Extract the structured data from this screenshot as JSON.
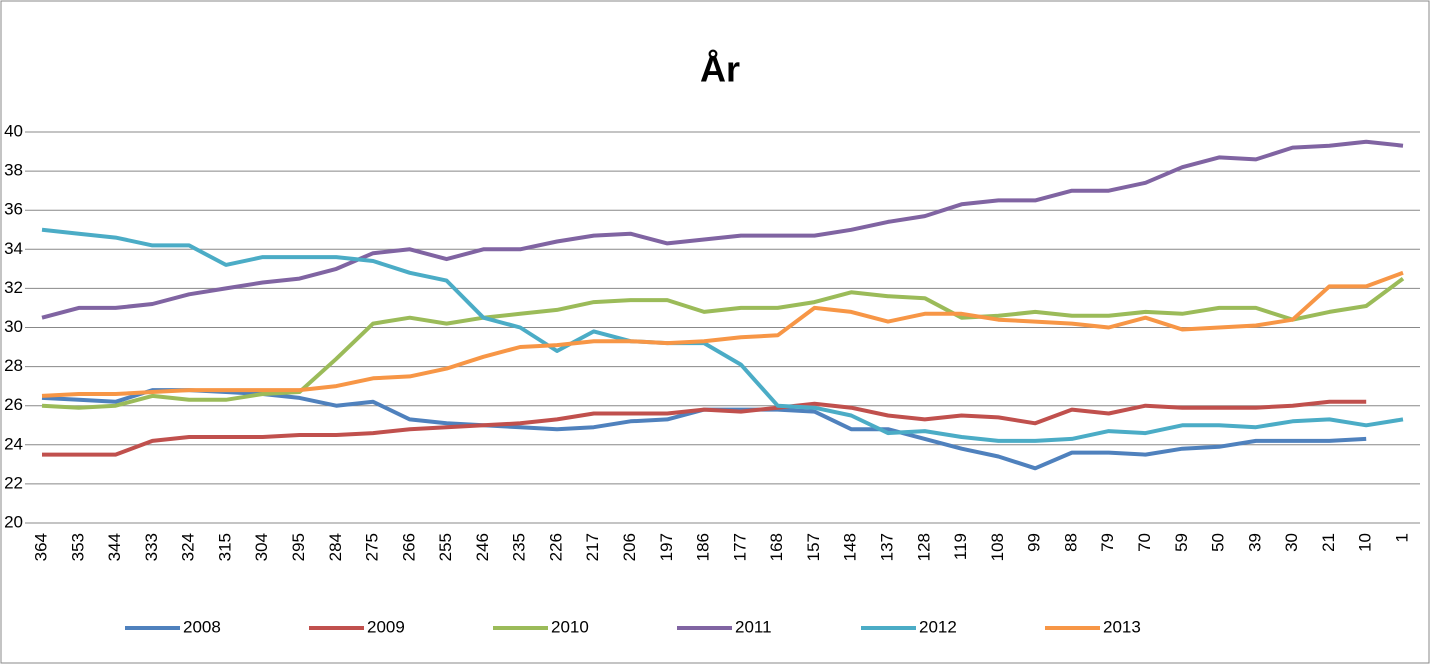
{
  "chart_data": {
    "type": "line",
    "title": "År",
    "categories": [
      "364",
      "353",
      "344",
      "333",
      "324",
      "315",
      "304",
      "295",
      "284",
      "275",
      "266",
      "255",
      "246",
      "235",
      "226",
      "217",
      "206",
      "197",
      "186",
      "177",
      "168",
      "157",
      "148",
      "137",
      "128",
      "119",
      "108",
      "99",
      "88",
      "79",
      "70",
      "59",
      "50",
      "39",
      "30",
      "21",
      "10",
      "1"
    ],
    "series": [
      {
        "name": "2008",
        "color": "#4f81bd",
        "values": [
          26.4,
          26.3,
          26.2,
          26.8,
          26.8,
          26.7,
          26.6,
          26.4,
          26.0,
          26.2,
          25.3,
          25.1,
          25.0,
          24.9,
          24.8,
          24.9,
          25.2,
          25.3,
          25.8,
          25.8,
          25.8,
          25.7,
          24.8,
          24.8,
          24.3,
          23.8,
          23.4,
          22.8,
          23.6,
          23.6,
          23.5,
          23.8,
          23.9,
          24.2,
          24.2,
          24.2,
          24.3,
          null
        ]
      },
      {
        "name": "2009",
        "color": "#c0504d",
        "values": [
          23.5,
          23.5,
          23.5,
          24.2,
          24.4,
          24.4,
          24.4,
          24.5,
          24.5,
          24.6,
          24.8,
          24.9,
          25.0,
          25.1,
          25.3,
          25.6,
          25.6,
          25.6,
          25.8,
          25.7,
          25.9,
          26.1,
          25.9,
          25.5,
          25.3,
          25.5,
          25.4,
          25.1,
          25.8,
          25.6,
          26.0,
          25.9,
          25.9,
          25.9,
          26.0,
          26.2,
          26.2,
          null
        ]
      },
      {
        "name": "2010",
        "color": "#9bbb59",
        "values": [
          26.0,
          25.9,
          26.0,
          26.5,
          26.3,
          26.3,
          26.6,
          26.7,
          28.4,
          30.2,
          30.5,
          30.2,
          30.5,
          30.7,
          30.9,
          31.3,
          31.4,
          31.4,
          30.8,
          31.0,
          31.0,
          31.3,
          31.8,
          31.6,
          31.5,
          30.5,
          30.6,
          30.8,
          30.6,
          30.6,
          30.8,
          30.7,
          31.0,
          31.0,
          30.4,
          30.8,
          31.1,
          32.5
        ]
      },
      {
        "name": "2011",
        "color": "#8064a2",
        "values": [
          30.5,
          31.0,
          31.0,
          31.2,
          31.7,
          32.0,
          32.3,
          32.5,
          33.0,
          33.8,
          34.0,
          33.5,
          34.0,
          34.0,
          34.4,
          34.7,
          34.8,
          34.3,
          34.5,
          34.7,
          34.7,
          34.7,
          35.0,
          35.4,
          35.7,
          36.3,
          36.5,
          36.5,
          37.0,
          37.0,
          37.4,
          38.2,
          38.7,
          38.6,
          39.2,
          39.3,
          39.5,
          39.3
        ]
      },
      {
        "name": "2012",
        "color": "#4bacc6",
        "values": [
          35.0,
          34.8,
          34.6,
          34.2,
          34.2,
          33.2,
          33.6,
          33.6,
          33.6,
          33.4,
          32.8,
          32.4,
          30.5,
          30.0,
          28.8,
          29.8,
          29.3,
          29.2,
          29.2,
          28.1,
          26.0,
          25.9,
          25.5,
          24.6,
          24.7,
          24.4,
          24.2,
          24.2,
          24.3,
          24.7,
          24.6,
          25.0,
          25.0,
          24.9,
          25.2,
          25.3,
          25.0,
          25.3
        ]
      },
      {
        "name": "2013",
        "color": "#f79646",
        "values": [
          26.5,
          26.6,
          26.6,
          26.7,
          26.8,
          26.8,
          26.8,
          26.8,
          27.0,
          27.4,
          27.5,
          27.9,
          28.5,
          29.0,
          29.1,
          29.3,
          29.3,
          29.2,
          29.3,
          29.5,
          29.6,
          31.0,
          30.8,
          30.3,
          30.7,
          30.7,
          30.4,
          30.3,
          30.2,
          30.0,
          30.5,
          29.9,
          30.0,
          30.1,
          30.4,
          32.1,
          32.1,
          32.8
        ]
      }
    ],
    "ylim": [
      20,
      40
    ],
    "yticks": [
      20,
      22,
      24,
      26,
      28,
      30,
      32,
      34,
      36,
      38,
      40
    ],
    "grid": true,
    "legend": "bottom"
  }
}
